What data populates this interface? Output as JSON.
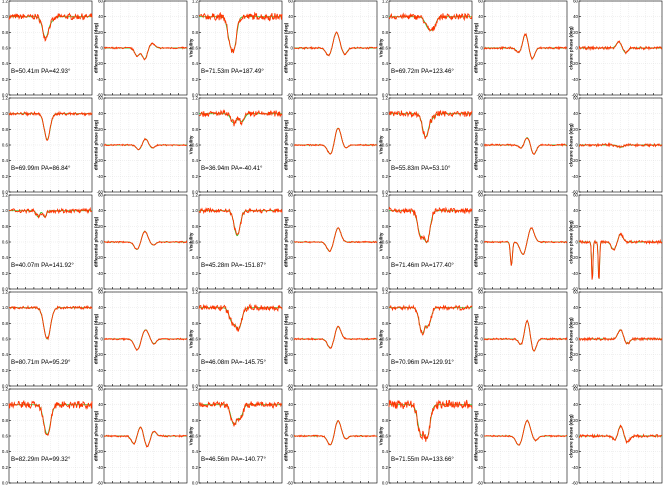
{
  "chart_data": {
    "type": "line",
    "title": "",
    "rows": 5,
    "series_colors": {
      "observed": "#ff3300",
      "model": "#33cc33"
    },
    "columns": [
      {
        "kind": "visibility",
        "ylabel": "Visibility",
        "ylim": [
          0.0,
          1.2
        ],
        "yticks": [
          "0.0",
          "0.2",
          "0.4",
          "0.6",
          "0.8",
          "1.0",
          "1.2"
        ],
        "baseline": 1.0
      },
      {
        "kind": "differential_phase",
        "ylabel": "differential phase (deg)",
        "ylim": [
          -60,
          60
        ],
        "yticks": [
          "-60",
          "-40",
          "-20",
          "0",
          "20",
          "40",
          "60"
        ],
        "baseline": 0
      },
      {
        "kind": "visibility",
        "ylabel": "Visibility",
        "ylim": [
          0.0,
          1.2
        ],
        "yticks": [
          "0.0",
          "0.2",
          "0.4",
          "0.6",
          "0.8",
          "1.0",
          "1.2"
        ],
        "baseline": 1.0
      },
      {
        "kind": "differential_phase",
        "ylabel": "differential phase (deg)",
        "ylim": [
          -60,
          60
        ],
        "yticks": [
          "-60",
          "-40",
          "-20",
          "0",
          "20",
          "40",
          "60"
        ],
        "baseline": 0
      },
      {
        "kind": "visibility",
        "ylabel": "Visibility",
        "ylim": [
          0.0,
          1.2
        ],
        "yticks": [
          "0.0",
          "0.2",
          "0.4",
          "0.6",
          "0.8",
          "1.0",
          "1.2"
        ],
        "baseline": 1.0
      },
      {
        "kind": "differential_phase",
        "ylabel": "differential phase (deg)",
        "ylim": [
          -60,
          60
        ],
        "yticks": [
          "-60",
          "-40",
          "-20",
          "0",
          "20",
          "40",
          "60"
        ],
        "baseline": 0
      },
      {
        "kind": "closure_phase",
        "ylabel": "closure phase (deg)",
        "ylim": [
          -60,
          60
        ],
        "yticks": [
          "-60",
          "-40",
          "-20",
          "0",
          "20",
          "40",
          "60"
        ],
        "baseline": 0
      }
    ],
    "baseline_labels": [
      [
        "B=50.41m PA=42.93°",
        "B=71.53m PA=187.49°",
        "B=69.72m PA=123.46°"
      ],
      [
        "B=69.99m PA=86.84°",
        "B=36.94m PA=-40.41°",
        "B=55.83m PA=53.10°"
      ],
      [
        "B=40.07m PA=141.92°",
        "B=45.28m PA=-151.87°",
        "B=71.46m PA=177.40°"
      ],
      [
        "B=80.71m PA=95.29°",
        "B=46.08m PA=-145.75°",
        "B=70.96m PA=129.91°"
      ],
      [
        "B=82.29m PA=99.32°",
        "B=46.56m PA=-140.77°",
        "B=71.55m PA=133.66°"
      ]
    ],
    "panels": [
      {
        "row": 0,
        "col": 0,
        "noise": 0.04,
        "features": [
          {
            "x": 0.44,
            "w": 0.035,
            "d": -0.27
          },
          {
            "x": 0.52,
            "w": 0.03,
            "d": -0.04
          }
        ]
      },
      {
        "row": 0,
        "col": 1,
        "noise": 1.2,
        "features": [
          {
            "x": 0.4,
            "w": 0.03,
            "d": -10
          },
          {
            "x": 0.49,
            "w": 0.03,
            "d": -14
          },
          {
            "x": 0.58,
            "w": 0.03,
            "d": 6
          }
        ]
      },
      {
        "row": 0,
        "col": 2,
        "noise": 0.05,
        "features": [
          {
            "x": 0.38,
            "w": 0.035,
            "d": -0.32
          },
          {
            "x": 0.43,
            "w": 0.03,
            "d": -0.28
          }
        ]
      },
      {
        "row": 0,
        "col": 3,
        "noise": 1.2,
        "features": [
          {
            "x": 0.42,
            "w": 0.035,
            "d": -10
          },
          {
            "x": 0.51,
            "w": 0.035,
            "d": 20
          },
          {
            "x": 0.61,
            "w": 0.03,
            "d": -8
          }
        ]
      },
      {
        "row": 0,
        "col": 4,
        "noise": 0.04,
        "features": [
          {
            "x": 0.48,
            "w": 0.04,
            "d": -0.15
          },
          {
            "x": 0.54,
            "w": 0.03,
            "d": -0.1
          }
        ]
      },
      {
        "row": 0,
        "col": 5,
        "noise": 1.5,
        "features": [
          {
            "x": 0.42,
            "w": 0.03,
            "d": -6
          },
          {
            "x": 0.5,
            "w": 0.03,
            "d": 18
          },
          {
            "x": 0.58,
            "w": 0.03,
            "d": -14
          }
        ]
      },
      {
        "row": 0,
        "col": 6,
        "noise": 2.0,
        "features": [
          {
            "x": 0.48,
            "w": 0.03,
            "d": 8
          },
          {
            "x": 0.56,
            "w": 0.03,
            "d": -6
          }
        ]
      },
      {
        "row": 1,
        "col": 0,
        "noise": 0.02,
        "features": [
          {
            "x": 0.46,
            "w": 0.035,
            "d": -0.33
          }
        ]
      },
      {
        "row": 1,
        "col": 1,
        "noise": 1.0,
        "features": [
          {
            "x": 0.42,
            "w": 0.03,
            "d": -6
          },
          {
            "x": 0.5,
            "w": 0.03,
            "d": 8
          },
          {
            "x": 0.58,
            "w": 0.03,
            "d": -4
          }
        ]
      },
      {
        "row": 1,
        "col": 2,
        "noise": 0.04,
        "features": [
          {
            "x": 0.42,
            "w": 0.035,
            "d": -0.12
          },
          {
            "x": 0.52,
            "w": 0.03,
            "d": -0.1
          }
        ]
      },
      {
        "row": 1,
        "col": 3,
        "noise": 1.0,
        "features": [
          {
            "x": 0.44,
            "w": 0.035,
            "d": -12
          },
          {
            "x": 0.53,
            "w": 0.035,
            "d": 22
          },
          {
            "x": 0.62,
            "w": 0.03,
            "d": -4
          }
        ]
      },
      {
        "row": 1,
        "col": 4,
        "noise": 0.04,
        "features": [
          {
            "x": 0.44,
            "w": 0.035,
            "d": -0.3
          },
          {
            "x": 0.52,
            "w": 0.03,
            "d": -0.05
          }
        ]
      },
      {
        "row": 1,
        "col": 5,
        "noise": 1.2,
        "features": [
          {
            "x": 0.45,
            "w": 0.03,
            "d": -4
          },
          {
            "x": 0.52,
            "w": 0.03,
            "d": 10
          },
          {
            "x": 0.6,
            "w": 0.03,
            "d": -12
          }
        ]
      },
      {
        "row": 1,
        "col": 6,
        "noise": 1.8,
        "features": [
          {
            "x": 0.5,
            "w": 0.03,
            "d": -3
          }
        ]
      },
      {
        "row": 2,
        "col": 0,
        "noise": 0.03,
        "features": [
          {
            "x": 0.35,
            "w": 0.02,
            "d": -0.08
          },
          {
            "x": 0.43,
            "w": 0.02,
            "d": -0.08
          }
        ]
      },
      {
        "row": 2,
        "col": 1,
        "noise": 1.0,
        "features": [
          {
            "x": 0.4,
            "w": 0.035,
            "d": -10
          },
          {
            "x": 0.49,
            "w": 0.035,
            "d": 14
          },
          {
            "x": 0.59,
            "w": 0.03,
            "d": -4
          }
        ]
      },
      {
        "row": 2,
        "col": 2,
        "noise": 0.03,
        "features": [
          {
            "x": 0.46,
            "w": 0.035,
            "d": -0.32
          }
        ]
      },
      {
        "row": 2,
        "col": 3,
        "noise": 1.0,
        "features": [
          {
            "x": 0.43,
            "w": 0.035,
            "d": -12
          },
          {
            "x": 0.53,
            "w": 0.035,
            "d": 18
          }
        ]
      },
      {
        "row": 2,
        "col": 4,
        "noise": 0.04,
        "features": [
          {
            "x": 0.38,
            "w": 0.035,
            "d": -0.3
          },
          {
            "x": 0.46,
            "w": 0.035,
            "d": -0.38
          }
        ]
      },
      {
        "row": 2,
        "col": 5,
        "noise": 1.0,
        "features": [
          {
            "x": 0.33,
            "w": 0.012,
            "d": -30
          },
          {
            "x": 0.47,
            "w": 0.035,
            "d": -16
          },
          {
            "x": 0.57,
            "w": 0.035,
            "d": 18
          }
        ]
      },
      {
        "row": 2,
        "col": 6,
        "noise": 2.0,
        "features": [
          {
            "x": 0.16,
            "w": 0.008,
            "d": -50
          },
          {
            "x": 0.24,
            "w": 0.008,
            "d": -50
          },
          {
            "x": 0.42,
            "w": 0.03,
            "d": -10
          },
          {
            "x": 0.5,
            "w": 0.03,
            "d": 10
          }
        ]
      },
      {
        "row": 3,
        "col": 0,
        "noise": 0.02,
        "features": [
          {
            "x": 0.46,
            "w": 0.04,
            "d": -0.4
          }
        ]
      },
      {
        "row": 3,
        "col": 1,
        "noise": 1.0,
        "features": [
          {
            "x": 0.4,
            "w": 0.035,
            "d": -14
          },
          {
            "x": 0.5,
            "w": 0.035,
            "d": 12
          },
          {
            "x": 0.6,
            "w": 0.03,
            "d": -6
          }
        ]
      },
      {
        "row": 3,
        "col": 2,
        "noise": 0.04,
        "features": [
          {
            "x": 0.4,
            "w": 0.035,
            "d": -0.18
          },
          {
            "x": 0.48,
            "w": 0.035,
            "d": -0.26
          }
        ]
      },
      {
        "row": 3,
        "col": 3,
        "noise": 1.0,
        "features": [
          {
            "x": 0.44,
            "w": 0.035,
            "d": -12
          },
          {
            "x": 0.53,
            "w": 0.035,
            "d": 16
          }
        ]
      },
      {
        "row": 3,
        "col": 4,
        "noise": 0.03,
        "features": [
          {
            "x": 0.4,
            "w": 0.035,
            "d": -0.32
          },
          {
            "x": 0.48,
            "w": 0.03,
            "d": -0.2
          }
        ]
      },
      {
        "row": 3,
        "col": 5,
        "noise": 1.2,
        "features": [
          {
            "x": 0.45,
            "w": 0.03,
            "d": -8
          },
          {
            "x": 0.52,
            "w": 0.03,
            "d": 24
          },
          {
            "x": 0.6,
            "w": 0.03,
            "d": -16
          }
        ]
      },
      {
        "row": 3,
        "col": 6,
        "noise": 1.8,
        "features": [
          {
            "x": 0.5,
            "w": 0.03,
            "d": 12
          },
          {
            "x": 0.58,
            "w": 0.03,
            "d": -6
          }
        ]
      },
      {
        "row": 4,
        "col": 0,
        "noise": 0.05,
        "features": [
          {
            "x": 0.46,
            "w": 0.04,
            "d": -0.38
          }
        ]
      },
      {
        "row": 4,
        "col": 1,
        "noise": 1.2,
        "features": [
          {
            "x": 0.36,
            "w": 0.03,
            "d": -10
          },
          {
            "x": 0.44,
            "w": 0.03,
            "d": 12
          },
          {
            "x": 0.52,
            "w": 0.03,
            "d": -14
          },
          {
            "x": 0.6,
            "w": 0.03,
            "d": 6
          }
        ]
      },
      {
        "row": 4,
        "col": 2,
        "noise": 0.04,
        "features": [
          {
            "x": 0.42,
            "w": 0.035,
            "d": -0.25
          },
          {
            "x": 0.5,
            "w": 0.03,
            "d": -0.15
          }
        ]
      },
      {
        "row": 4,
        "col": 3,
        "noise": 1.0,
        "features": [
          {
            "x": 0.44,
            "w": 0.035,
            "d": -12
          },
          {
            "x": 0.53,
            "w": 0.035,
            "d": 20
          },
          {
            "x": 0.62,
            "w": 0.03,
            "d": -4
          }
        ]
      },
      {
        "row": 4,
        "col": 4,
        "noise": 0.06,
        "features": [
          {
            "x": 0.38,
            "w": 0.035,
            "d": -0.35
          },
          {
            "x": 0.46,
            "w": 0.035,
            "d": -0.4
          }
        ]
      },
      {
        "row": 4,
        "col": 5,
        "noise": 1.0,
        "features": [
          {
            "x": 0.42,
            "w": 0.035,
            "d": -12
          },
          {
            "x": 0.52,
            "w": 0.035,
            "d": 20
          },
          {
            "x": 0.62,
            "w": 0.03,
            "d": -6
          }
        ]
      },
      {
        "row": 4,
        "col": 6,
        "noise": 1.8,
        "features": [
          {
            "x": 0.44,
            "w": 0.03,
            "d": -6
          },
          {
            "x": 0.5,
            "w": 0.03,
            "d": 14
          },
          {
            "x": 0.58,
            "w": 0.03,
            "d": -8
          }
        ]
      }
    ]
  }
}
